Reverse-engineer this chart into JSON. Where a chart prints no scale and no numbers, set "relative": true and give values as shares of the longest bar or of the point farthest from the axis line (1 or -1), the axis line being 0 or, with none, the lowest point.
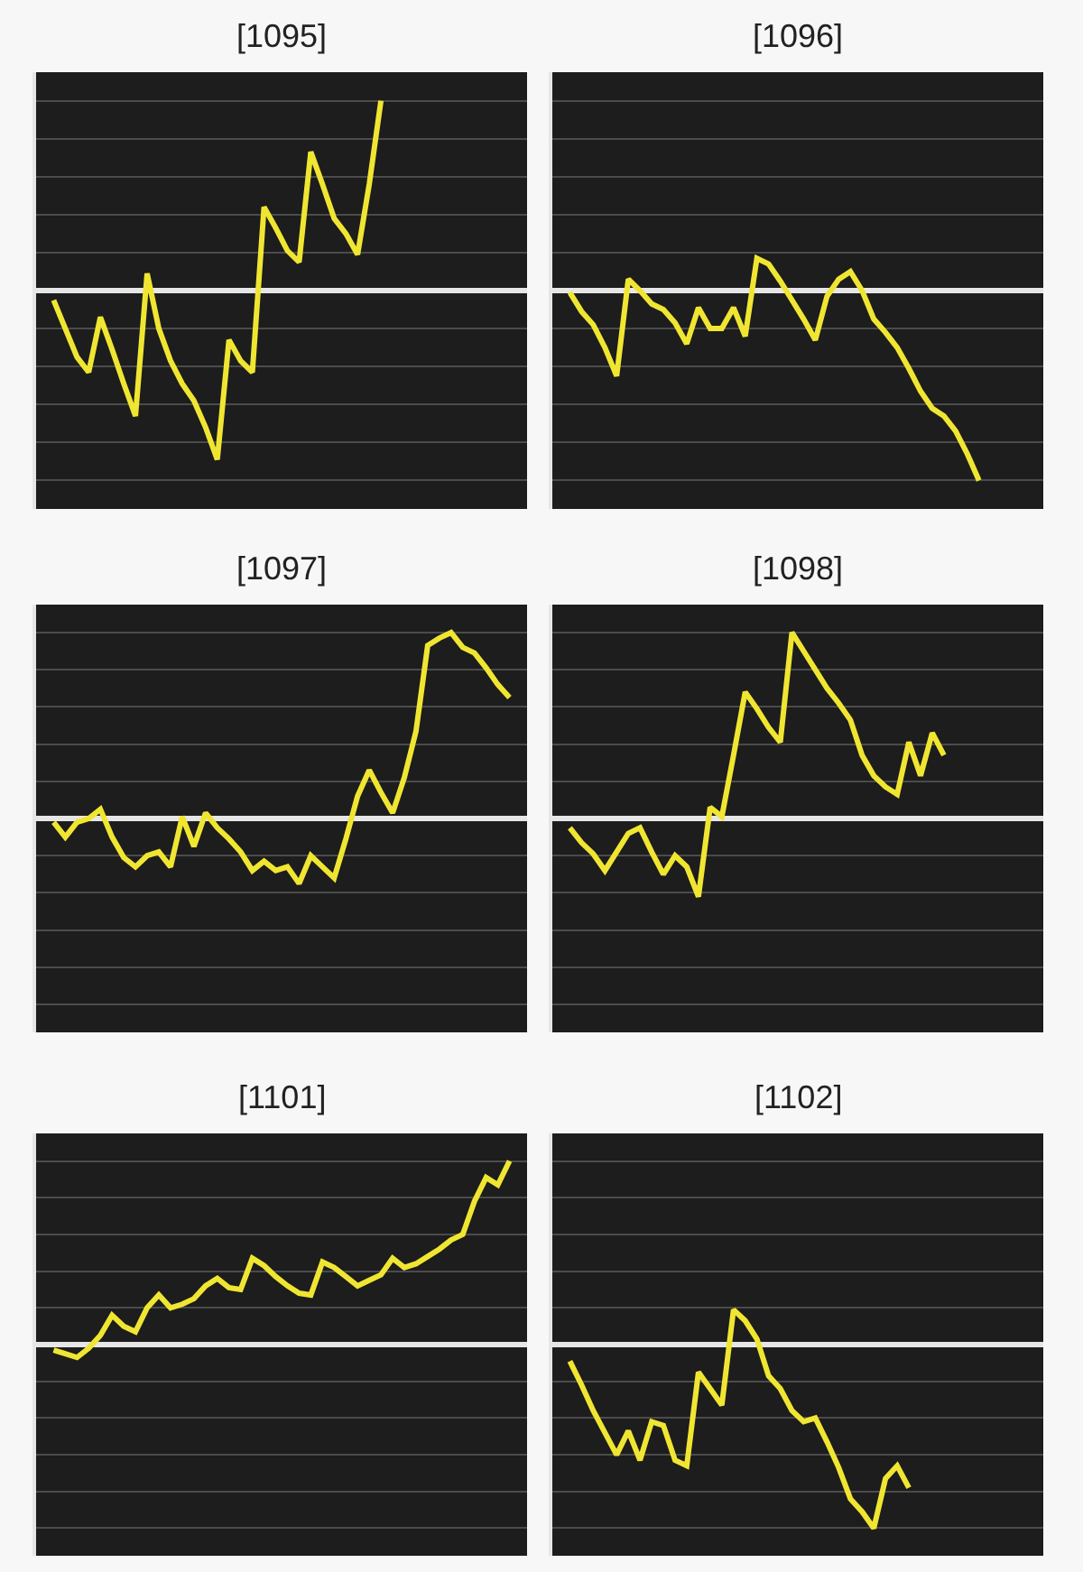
{
  "chart_data": [
    {
      "type": "line",
      "title": "[1095]",
      "relative": true,
      "grid": "y",
      "categories": [
        null,
        null,
        null,
        null,
        null,
        null,
        null,
        null,
        null,
        null,
        null,
        null,
        null,
        null,
        null,
        null,
        null,
        null,
        null,
        null,
        null,
        null,
        null,
        null,
        null,
        null,
        null,
        null,
        null,
        null,
        null,
        null,
        null,
        null,
        null,
        null,
        null,
        null,
        null,
        null
      ],
      "series": [
        {
          "color": "#f0e632",
          "values": [
            -0.05,
            -0.2,
            -0.35,
            -0.43,
            -0.14,
            -0.31,
            -0.49,
            -0.66,
            0.09,
            -0.2,
            -0.37,
            -0.49,
            -0.58,
            -0.72,
            -0.89,
            -0.26,
            -0.37,
            -0.43,
            0.44,
            0.33,
            0.21,
            0.15,
            0.73,
            0.56,
            0.38,
            0.3,
            0.19,
            0.56,
            1,
            null,
            null,
            null,
            null,
            null,
            null,
            null,
            null,
            null,
            null,
            null
          ]
        }
      ]
    },
    {
      "type": "line",
      "title": "[1096]",
      "relative": true,
      "grid": "y",
      "categories": [
        null,
        null,
        null,
        null,
        null,
        null,
        null,
        null,
        null,
        null,
        null,
        null,
        null,
        null,
        null,
        null,
        null,
        null,
        null,
        null,
        null,
        null,
        null,
        null,
        null,
        null,
        null,
        null,
        null,
        null,
        null,
        null,
        null,
        null,
        null,
        null,
        null,
        null,
        null,
        null
      ],
      "series": [
        {
          "color": "#f0e632",
          "values": [
            -0.01,
            -0.11,
            -0.18,
            -0.3,
            -0.45,
            0.06,
            0,
            -0.07,
            -0.1,
            -0.17,
            -0.28,
            -0.09,
            -0.2,
            -0.2,
            -0.09,
            -0.24,
            0.17,
            0.14,
            0.05,
            -0.05,
            -0.15,
            -0.26,
            -0.03,
            0.06,
            0.1,
            0,
            -0.15,
            -0.22,
            -0.3,
            -0.41,
            -0.53,
            -0.62,
            -0.66,
            -0.74,
            -0.86,
            -1,
            null,
            null,
            null,
            null
          ]
        }
      ]
    },
    {
      "type": "line",
      "title": "[1097]",
      "relative": true,
      "grid": "y",
      "categories": [
        null,
        null,
        null,
        null,
        null,
        null,
        null,
        null,
        null,
        null,
        null,
        null,
        null,
        null,
        null,
        null,
        null,
        null,
        null,
        null,
        null,
        null,
        null,
        null,
        null,
        null,
        null,
        null,
        null,
        null,
        null,
        null,
        null,
        null,
        null,
        null,
        null,
        null,
        null,
        null
      ],
      "series": [
        {
          "color": "#f0e632",
          "values": [
            -0.02,
            -0.1,
            -0.02,
            0,
            0.05,
            -0.1,
            -0.21,
            -0.26,
            -0.2,
            -0.18,
            -0.26,
            0.01,
            -0.15,
            0.03,
            -0.05,
            -0.11,
            -0.18,
            -0.28,
            -0.23,
            -0.28,
            -0.26,
            -0.35,
            -0.2,
            -0.26,
            -0.32,
            -0.11,
            0.12,
            0.26,
            0.14,
            0.03,
            0.22,
            0.47,
            0.93,
            0.97,
            1,
            0.92,
            0.89,
            0.81,
            0.72,
            0.65
          ]
        }
      ]
    },
    {
      "type": "line",
      "title": "[1098]",
      "relative": true,
      "grid": "y",
      "categories": [
        null,
        null,
        null,
        null,
        null,
        null,
        null,
        null,
        null,
        null,
        null,
        null,
        null,
        null,
        null,
        null,
        null,
        null,
        null,
        null,
        null,
        null,
        null,
        null,
        null,
        null,
        null,
        null,
        null,
        null,
        null,
        null,
        null,
        null,
        null,
        null,
        null,
        null,
        null,
        null
      ],
      "series": [
        {
          "color": "#f0e632",
          "values": [
            -0.05,
            -0.13,
            -0.19,
            -0.28,
            -0.18,
            -0.08,
            -0.05,
            -0.18,
            -0.3,
            -0.2,
            -0.26,
            -0.42,
            0.06,
            0.01,
            0.34,
            0.68,
            0.59,
            0.49,
            0.41,
            1,
            0.9,
            0.8,
            0.7,
            0.62,
            0.53,
            0.34,
            0.23,
            0.17,
            0.13,
            0.41,
            0.23,
            0.46,
            0.34,
            null,
            null,
            null,
            null,
            null,
            null,
            null
          ]
        }
      ]
    },
    {
      "type": "line",
      "title": "[1101]",
      "relative": true,
      "grid": "y",
      "categories": [
        null,
        null,
        null,
        null,
        null,
        null,
        null,
        null,
        null,
        null,
        null,
        null,
        null,
        null,
        null,
        null,
        null,
        null,
        null,
        null,
        null,
        null,
        null,
        null,
        null,
        null,
        null,
        null,
        null,
        null,
        null,
        null,
        null,
        null,
        null,
        null,
        null,
        null,
        null,
        null
      ],
      "series": [
        {
          "color": "#f0e632",
          "values": [
            -0.03,
            -0.05,
            -0.07,
            -0.02,
            0.05,
            0.16,
            0.1,
            0.07,
            0.2,
            0.27,
            0.2,
            0.22,
            0.25,
            0.32,
            0.36,
            0.31,
            0.3,
            0.47,
            0.43,
            0.37,
            0.32,
            0.28,
            0.27,
            0.45,
            0.42,
            0.37,
            0.32,
            0.35,
            0.38,
            0.47,
            0.42,
            0.44,
            0.48,
            0.52,
            0.57,
            0.6,
            0.78,
            0.91,
            0.87,
            1
          ]
        }
      ]
    },
    {
      "type": "line",
      "title": "[1102]",
      "relative": true,
      "grid": "y",
      "categories": [
        null,
        null,
        null,
        null,
        null,
        null,
        null,
        null,
        null,
        null,
        null,
        null,
        null,
        null,
        null,
        null,
        null,
        null,
        null,
        null,
        null,
        null,
        null,
        null,
        null,
        null,
        null,
        null,
        null,
        null,
        null,
        null,
        null,
        null,
        null,
        null,
        null,
        null,
        null,
        null
      ],
      "series": [
        {
          "color": "#f0e632",
          "values": [
            -0.09,
            -0.22,
            -0.36,
            -0.48,
            -0.6,
            -0.47,
            -0.63,
            -0.42,
            -0.44,
            -0.63,
            -0.66,
            -0.15,
            -0.24,
            -0.33,
            0.19,
            0.13,
            0.03,
            -0.17,
            -0.24,
            -0.36,
            -0.42,
            -0.4,
            -0.53,
            -0.67,
            -0.84,
            -0.91,
            -1,
            -0.73,
            -0.66,
            -0.78,
            null,
            null,
            null,
            null,
            null,
            null,
            null,
            null,
            null,
            null
          ]
        }
      ]
    }
  ]
}
